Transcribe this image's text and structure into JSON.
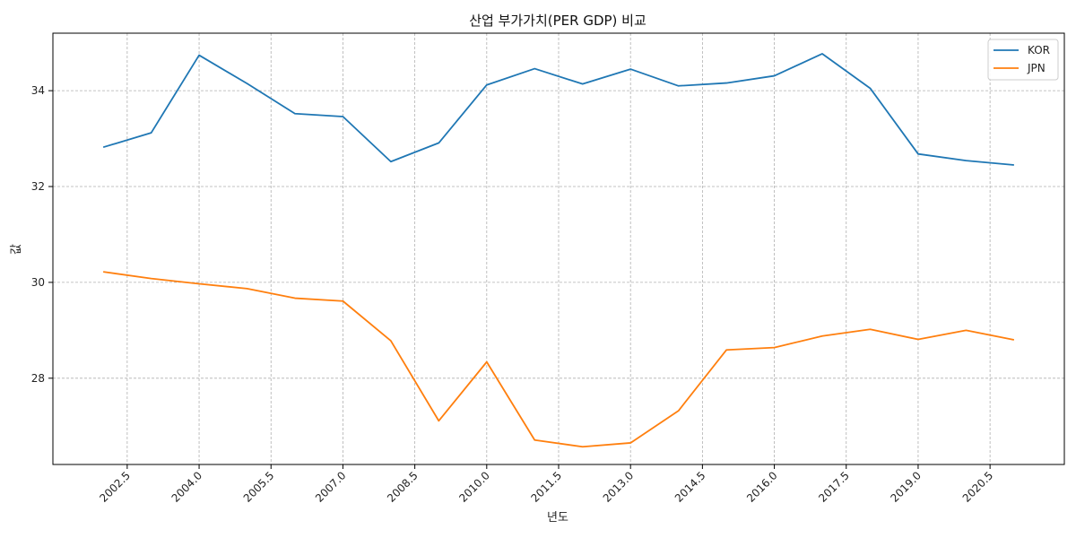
{
  "chart_data": {
    "type": "line",
    "title": "산업 부가가치(PER GDP) 비교",
    "xlabel": "년도",
    "ylabel": "값",
    "x": [
      2002,
      2003,
      2004,
      2005,
      2006,
      2007,
      2008,
      2009,
      2010,
      2011,
      2012,
      2013,
      2014,
      2015,
      2016,
      2017,
      2018,
      2019,
      2020,
      2021
    ],
    "xlim": [
      2000.95,
      2022.05
    ],
    "ylim": [
      26.2,
      35.2
    ],
    "x_ticks": [
      "2002.5",
      "2004.0",
      "2005.5",
      "2007.0",
      "2008.5",
      "2010.0",
      "2011.5",
      "2013.0",
      "2014.5",
      "2016.0",
      "2017.5",
      "2019.0",
      "2020.5"
    ],
    "y_ticks": [
      "28",
      "30",
      "32",
      "34"
    ],
    "grid": true,
    "legend_position": "top-right",
    "series": [
      {
        "name": "KOR",
        "color": "#1f77b4",
        "values": [
          32.82,
          33.12,
          34.74,
          34.15,
          33.52,
          33.46,
          32.52,
          32.91,
          34.12,
          34.46,
          34.14,
          34.45,
          34.1,
          34.16,
          34.31,
          34.77,
          34.05,
          32.68,
          32.54,
          32.45
        ]
      },
      {
        "name": "JPN",
        "color": "#ff7f0e",
        "values": [
          30.22,
          30.08,
          29.97,
          29.87,
          29.67,
          29.61,
          28.78,
          27.11,
          28.34,
          26.71,
          26.57,
          26.65,
          27.32,
          28.59,
          28.64,
          28.88,
          29.02,
          28.81,
          29.0,
          28.8
        ]
      }
    ]
  }
}
